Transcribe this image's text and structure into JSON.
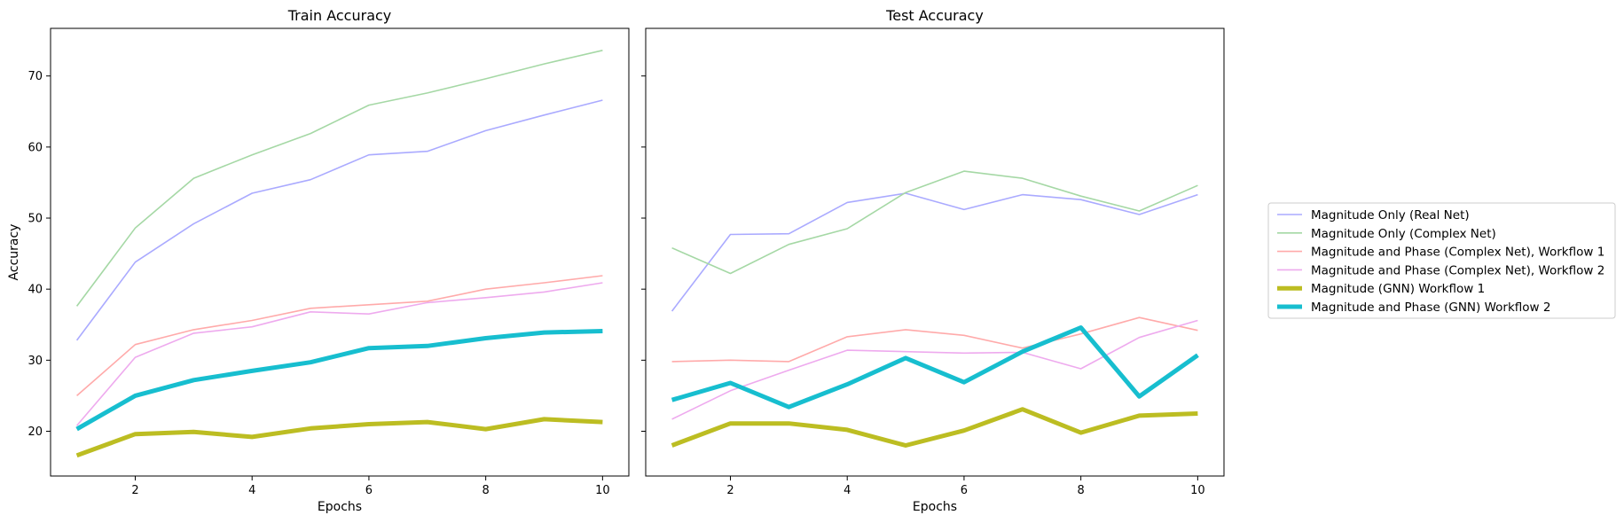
{
  "chart_data": {
    "type": "line",
    "legend_placement": "center-right outside",
    "grid": false,
    "series": [
      {
        "name": "Magnitude Only (Real Net)",
        "color": "#aaaaff",
        "width": "thin"
      },
      {
        "name": "Magnitude Only (Complex Net)",
        "color": "#a5d8a5",
        "width": "thin"
      },
      {
        "name": "Magnitude and Phase (Complex Net), Workflow 1",
        "color": "#ffaaaa",
        "width": "thin"
      },
      {
        "name": "Magnitude and Phase (Complex Net), Workflow 2",
        "color": "#eeaaee",
        "width": "thin"
      },
      {
        "name": "Magnitude (GNN) Workflow 1",
        "color": "#bcbd22",
        "width": "thick"
      },
      {
        "name": "Magnitude and Phase (GNN) Workflow 2",
        "color": "#17becf",
        "width": "thick"
      }
    ],
    "panels": [
      {
        "title": "Train Accuracy",
        "xlabel": "Epochs",
        "ylabel": "Accuracy",
        "show_y_tick_labels": true,
        "x": [
          1,
          2,
          3,
          4,
          5,
          6,
          7,
          8,
          9,
          10
        ],
        "xticks": [
          "2",
          "4",
          "6",
          "8",
          "10"
        ],
        "values": [
          [
            32.8,
            43.8,
            49.2,
            53.5,
            55.4,
            58.9,
            59.4,
            62.3,
            64.5,
            66.6
          ],
          [
            37.6,
            48.6,
            55.6,
            58.9,
            61.9,
            65.9,
            67.6,
            69.6,
            71.7,
            73.6
          ],
          [
            25.0,
            32.2,
            34.3,
            35.6,
            37.3,
            37.8,
            38.3,
            40.0,
            40.9,
            41.9
          ],
          [
            20.8,
            30.4,
            33.8,
            34.7,
            36.8,
            36.5,
            38.1,
            38.8,
            39.6,
            40.9
          ],
          [
            16.6,
            19.6,
            19.9,
            19.2,
            20.4,
            21.0,
            21.3,
            20.3,
            21.7,
            21.3
          ],
          [
            20.3,
            25.0,
            27.2,
            28.5,
            29.7,
            31.7,
            32.0,
            33.1,
            33.9,
            34.1
          ]
        ]
      },
      {
        "title": "Test Accuracy",
        "xlabel": "Epochs",
        "ylabel": "",
        "show_y_tick_labels": false,
        "x": [
          1,
          2,
          3,
          4,
          5,
          6,
          7,
          8,
          9,
          10
        ],
        "xticks": [
          "2",
          "4",
          "6",
          "8",
          "10"
        ],
        "values": [
          [
            36.9,
            47.7,
            47.8,
            52.2,
            53.5,
            51.2,
            53.3,
            52.6,
            50.5,
            53.3
          ],
          [
            45.8,
            42.2,
            46.3,
            48.5,
            53.6,
            56.6,
            55.6,
            53.1,
            51.0,
            54.6
          ],
          [
            29.8,
            30.0,
            29.8,
            33.3,
            34.3,
            33.5,
            31.7,
            33.7,
            36.0,
            34.2
          ],
          [
            21.7,
            25.7,
            28.6,
            31.4,
            31.2,
            31.0,
            31.1,
            28.8,
            33.2,
            35.6
          ],
          [
            18.0,
            21.1,
            21.1,
            20.2,
            18.0,
            20.1,
            23.1,
            19.8,
            22.2,
            22.5
          ],
          [
            24.4,
            26.8,
            23.4,
            26.6,
            30.3,
            26.9,
            31.2,
            34.6,
            24.9,
            30.7
          ]
        ]
      }
    ],
    "ylim": [
      13.7,
      76.7
    ],
    "xlim": [
      0.55,
      10.45
    ],
    "yticks": [
      "20",
      "30",
      "40",
      "50",
      "60",
      "70"
    ]
  }
}
